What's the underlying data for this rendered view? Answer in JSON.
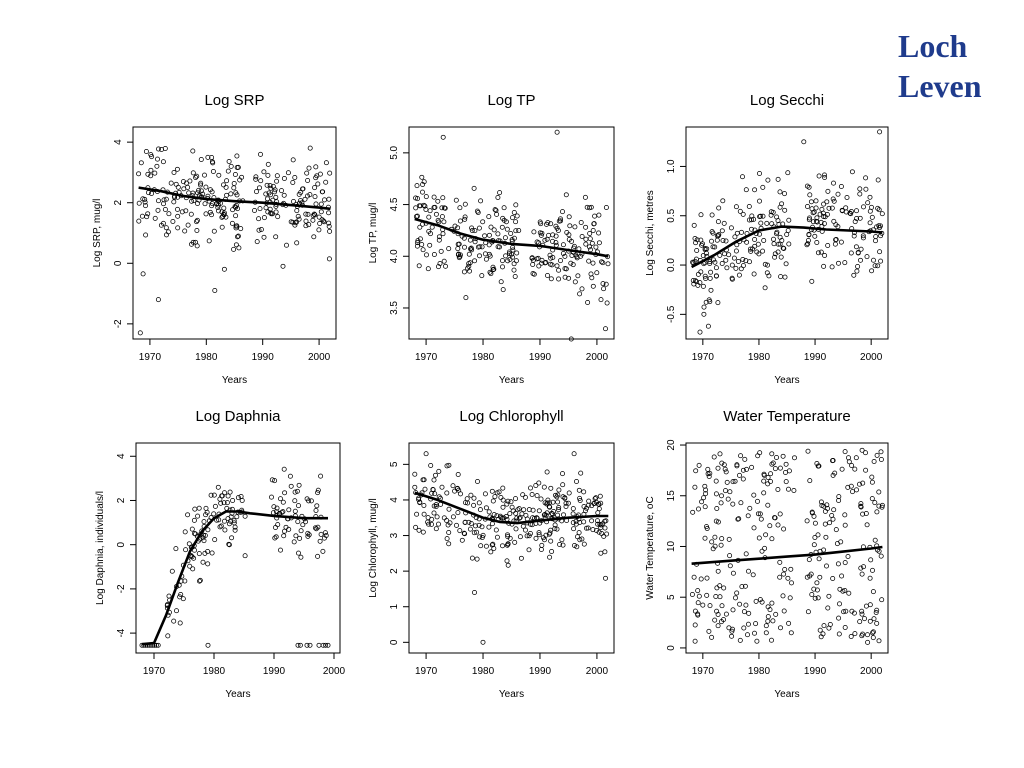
{
  "slide": {
    "title_line1": "Loch",
    "title_line2": "Leven",
    "title_color": "#1f3b8c"
  },
  "chart_data": [
    {
      "type": "scatter",
      "title": "Log SRP",
      "xlabel": "Years",
      "ylabel": "Log SRP, mug/l",
      "xlim": [
        1967,
        2003
      ],
      "ylim": [
        -2.5,
        4.5
      ],
      "xticks": [
        1970,
        1980,
        1990,
        2000
      ],
      "yticks": [
        -2,
        0,
        2,
        4
      ],
      "grid": false,
      "trend": {
        "x": [
          1968,
          1972,
          1976,
          1980,
          1985,
          1990,
          1995,
          2000,
          2002
        ],
        "y": [
          2.5,
          2.38,
          2.22,
          2.12,
          2.05,
          2.0,
          1.92,
          1.84,
          1.8
        ]
      },
      "points": {
        "gen": "cloud",
        "seed": 11,
        "n": 300,
        "x0": 1968,
        "x1": 2002,
        "spread": 0.9,
        "min": -2.3,
        "max": 4.3,
        "gaps": [
          [
            1986.5,
            1988.5
          ]
        ],
        "outliers": [
          [
            1968.3,
            -2.3
          ],
          [
            1968.8,
            -0.35
          ],
          [
            1971.5,
            -1.2
          ],
          [
            1981.5,
            -0.9
          ],
          [
            1983.2,
            -0.2
          ],
          [
            1993.6,
            -0.1
          ]
        ]
      }
    },
    {
      "type": "scatter",
      "title": "Log TP",
      "xlabel": "Years",
      "ylabel": "Log TP, mug/l",
      "xlim": [
        1967,
        2003
      ],
      "ylim": [
        3.2,
        5.25
      ],
      "xticks": [
        1970,
        1980,
        1990,
        2000
      ],
      "yticks": [
        3.5,
        4.0,
        4.5,
        5.0
      ],
      "yticklabels": [
        "3.5",
        "4.0",
        "4.5",
        "5.0"
      ],
      "grid": false,
      "trend": {
        "x": [
          1968,
          1972,
          1976,
          1980,
          1985,
          1990,
          1995,
          2000,
          2002
        ],
        "y": [
          4.36,
          4.3,
          4.22,
          4.16,
          4.12,
          4.1,
          4.06,
          4.02,
          4.0
        ]
      },
      "points": {
        "gen": "cloud",
        "seed": 23,
        "n": 300,
        "x0": 1968,
        "x1": 2002,
        "spread": 0.27,
        "min": 3.2,
        "max": 5.2,
        "gaps": [
          [
            1986.5,
            1988.5
          ]
        ],
        "outliers": [
          [
            1973.0,
            5.15
          ],
          [
            1977.0,
            3.6
          ],
          [
            1993.0,
            5.2
          ],
          [
            1995.5,
            3.2
          ],
          [
            2001.5,
            3.3
          ]
        ]
      }
    },
    {
      "type": "scatter",
      "title": "Log Secchi",
      "xlabel": "Years",
      "ylabel": "Log Secchi, metres",
      "xlim": [
        1967,
        2003
      ],
      "ylim": [
        -0.75,
        1.4
      ],
      "xticks": [
        1970,
        1980,
        1990,
        2000
      ],
      "yticks": [
        -0.5,
        0.0,
        0.5,
        1.0
      ],
      "yticklabels": [
        "-0.5",
        "0.0",
        "0.5",
        "1.0"
      ],
      "grid": false,
      "trend": {
        "x": [
          1968,
          1972,
          1976,
          1980,
          1984,
          1988,
          1992,
          1996,
          2000,
          2002
        ],
        "y": [
          -0.02,
          0.1,
          0.24,
          0.35,
          0.39,
          0.38,
          0.36,
          0.35,
          0.34,
          0.33
        ]
      },
      "points": {
        "gen": "cloud",
        "seed": 37,
        "n": 300,
        "x0": 1968,
        "x1": 2002,
        "spread": 0.33,
        "min": -0.7,
        "max": 1.35,
        "gaps": [
          [
            1985.5,
            1988.5
          ]
        ],
        "outliers": [
          [
            1969.5,
            -0.68
          ],
          [
            1971.0,
            -0.62
          ],
          [
            1988.0,
            1.25
          ],
          [
            2001.5,
            1.35
          ]
        ]
      }
    },
    {
      "type": "scatter",
      "title": "Log Daphnia",
      "xlabel": "Years",
      "ylabel": "Log Daphnia, individuals/l",
      "xlim": [
        1967,
        2001
      ],
      "ylim": [
        -4.9,
        4.6
      ],
      "xticks": [
        1970,
        1980,
        1990,
        2000
      ],
      "yticks": [
        -4,
        -2,
        0,
        2,
        4
      ],
      "grid": false,
      "trend": {
        "x": [
          1968,
          1970,
          1972,
          1974,
          1976,
          1978,
          1980,
          1982,
          1984,
          1986,
          1990,
          1995,
          1999
        ],
        "y": [
          -4.5,
          -4.45,
          -3.2,
          -1.7,
          -0.3,
          0.6,
          1.2,
          1.5,
          1.5,
          1.42,
          1.3,
          1.2,
          1.2
        ]
      },
      "points": {
        "gen": "cloud",
        "seed": 53,
        "n": 190,
        "x0": 1972,
        "x1": 1999,
        "spread": 1.1,
        "min": -4.5,
        "max": 4.4,
        "gaps": [
          [
            1985.5,
            1989.5
          ]
        ],
        "floor": {
          "y": -4.55,
          "xs": [
            1968.0,
            1968.3,
            1968.6,
            1968.9,
            1969.2,
            1969.5,
            1969.8,
            1970.1,
            1970.4,
            1970.7,
            1979.0,
            1994.0,
            1994.4,
            1995.5,
            1996.0,
            1997.5,
            1998.2,
            1998.6,
            1999.0
          ]
        }
      }
    },
    {
      "type": "scatter",
      "title": "Log Chlorophyll",
      "xlabel": "Years",
      "ylabel": "Log Chlorophyll, mug/l",
      "xlim": [
        1967,
        2003
      ],
      "ylim": [
        -0.3,
        5.6
      ],
      "xticks": [
        1970,
        1980,
        1990,
        2000
      ],
      "yticks": [
        0,
        1,
        2,
        3,
        4,
        5
      ],
      "grid": false,
      "trend": {
        "x": [
          1968,
          1972,
          1976,
          1980,
          1983,
          1986,
          1990,
          1995,
          2000,
          2002
        ],
        "y": [
          4.2,
          4.0,
          3.75,
          3.5,
          3.38,
          3.35,
          3.42,
          3.5,
          3.55,
          3.55
        ]
      },
      "points": {
        "gen": "cloud",
        "seed": 71,
        "n": 320,
        "x0": 1968,
        "x1": 2002,
        "spread": 0.65,
        "min": 0.0,
        "max": 5.4,
        "gaps": [],
        "outliers": [
          [
            1980.0,
            0.0
          ],
          [
            1978.5,
            1.4
          ],
          [
            1970.0,
            5.3
          ],
          [
            1996.0,
            5.3
          ],
          [
            2001.5,
            1.8
          ]
        ]
      }
    },
    {
      "type": "scatter",
      "title": "Water Temperature",
      "xlabel": "Years",
      "ylabel": "Water Temperature, oC",
      "xlim": [
        1967,
        2003
      ],
      "ylim": [
        -0.5,
        20.2
      ],
      "xticks": [
        1970,
        1980,
        1990,
        2000
      ],
      "yticks": [
        0,
        5,
        10,
        15,
        20
      ],
      "grid": false,
      "trend": {
        "x": [
          1968,
          1975,
          1980,
          1985,
          1990,
          1995,
          2000,
          2002
        ],
        "y": [
          8.3,
          8.6,
          8.8,
          9.0,
          9.2,
          9.5,
          9.8,
          9.95
        ]
      },
      "points": {
        "gen": "uniform",
        "seed": 97,
        "n": 340,
        "x0": 1968,
        "x1": 2002,
        "min": 0.5,
        "max": 19.5,
        "gaps": [
          [
            1986.5,
            1988.5
          ]
        ]
      }
    }
  ]
}
